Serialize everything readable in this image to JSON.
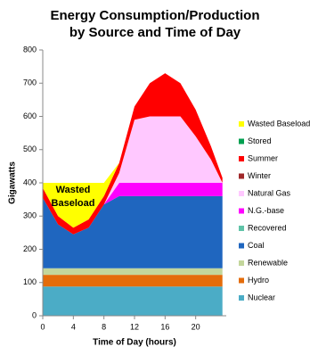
{
  "chart_data": {
    "type": "stacked_area",
    "title": "Energy Consumption/Production",
    "subtitle": "by Source and Time of Day",
    "x_label": "Time of Day (hours)",
    "y_label": "Gigawatts",
    "annotation_lines": [
      "Wasted",
      "Baseload"
    ],
    "x": [
      0,
      2,
      4,
      6,
      8,
      10,
      12,
      14,
      16,
      18,
      20,
      22,
      23.5
    ],
    "xlim": [
      0,
      24
    ],
    "xticks": [
      0,
      4,
      8,
      12,
      16,
      20
    ],
    "ylim": [
      0,
      800
    ],
    "yticks": [
      0,
      100,
      200,
      300,
      400,
      500,
      600,
      700,
      800
    ],
    "series": [
      {
        "name": "Nuclear",
        "color": "#4bacc6",
        "values": [
          88,
          88,
          88,
          88,
          88,
          88,
          88,
          88,
          88,
          88,
          88,
          88,
          88
        ]
      },
      {
        "name": "Hydro",
        "color": "#e46c0a",
        "values": [
          35,
          35,
          35,
          35,
          35,
          35,
          35,
          35,
          35,
          35,
          35,
          35,
          35
        ]
      },
      {
        "name": "Renewable",
        "color": "#c3d69b",
        "values": [
          20,
          20,
          20,
          20,
          20,
          20,
          20,
          20,
          20,
          20,
          20,
          20,
          20
        ]
      },
      {
        "name": "Coal",
        "color": "#1f66bf",
        "values": [
          212,
          132,
          102,
          122,
          192,
          217,
          217,
          217,
          217,
          217,
          217,
          217,
          217
        ]
      },
      {
        "name": "Recovered",
        "color": "#5fc3a8",
        "values": [
          0,
          0,
          0,
          0,
          0,
          0,
          0,
          0,
          0,
          0,
          0,
          0,
          0
        ]
      },
      {
        "name": "N.G.-base",
        "color": "#ff00ff",
        "values": [
          0,
          0,
          0,
          0,
          0,
          40,
          40,
          40,
          40,
          40,
          40,
          40,
          40
        ]
      },
      {
        "name": "Natural Gas",
        "color": "#ffc8ff",
        "values": [
          0,
          0,
          0,
          0,
          0,
          30,
          190,
          200,
          200,
          200,
          140,
          70,
          0
        ]
      },
      {
        "name": "Winter",
        "color": "#a0282a",
        "values": [
          0,
          0,
          0,
          0,
          0,
          0,
          0,
          0,
          0,
          0,
          0,
          0,
          0
        ]
      },
      {
        "name": "Summer",
        "color": "#ff0000",
        "values": [
          30,
          25,
          20,
          25,
          25,
          30,
          40,
          100,
          130,
          100,
          80,
          40,
          15
        ]
      },
      {
        "name": "Stored",
        "color": "#00a050",
        "values": [
          0,
          0,
          0,
          0,
          0,
          0,
          0,
          0,
          0,
          0,
          0,
          0,
          0
        ]
      },
      {
        "name": "Wasted Baseload",
        "color": "#ffff00",
        "values": [
          15,
          100,
          135,
          110,
          40,
          0,
          0,
          0,
          0,
          0,
          0,
          0,
          0
        ]
      }
    ]
  }
}
